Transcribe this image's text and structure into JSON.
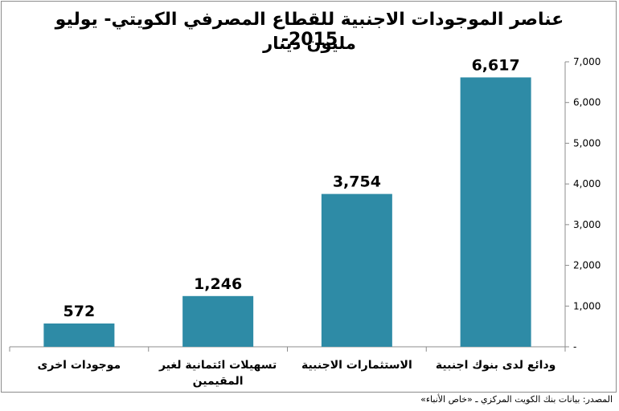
{
  "title_line1": "عناصر الموجودات الاجنبية للقطاع المصرفي الكويتي- يوليو  2015-",
  "title_line2": "مليون دينار",
  "source": "المصدر: بيانات بنك الكويت المركزي ـ «خاص الأنباء»",
  "colors": {
    "bar": "#2e8ba6",
    "axis": "#8c8c8c"
  },
  "chart_data": {
    "type": "bar",
    "title": "عناصر الموجودات الاجنبية للقطاع المصرفي الكويتي- يوليو  2015- مليون دينار",
    "categories": [
      [
        "موجودات اخرى"
      ],
      [
        "تسهيلات ائتمانية لغير",
        "المقيمين"
      ],
      [
        "الاستثمارات الاجنبية"
      ],
      [
        "ودائع لدى بنوك اجنبية"
      ]
    ],
    "values": [
      572,
      1246,
      3754,
      6617
    ],
    "data_labels": [
      "572",
      "1,246",
      "3,754",
      "6,617"
    ],
    "yticks": [
      0,
      1000,
      2000,
      3000,
      4000,
      5000,
      6000,
      7000
    ],
    "ytick_labels": [
      "-",
      "1,000",
      "2,000",
      "3,000",
      "4,000",
      "5,000",
      "6,000",
      "7,000"
    ],
    "ylim": [
      0,
      7000
    ],
    "y_axis_side": "right",
    "grid": false,
    "legend": "none"
  }
}
